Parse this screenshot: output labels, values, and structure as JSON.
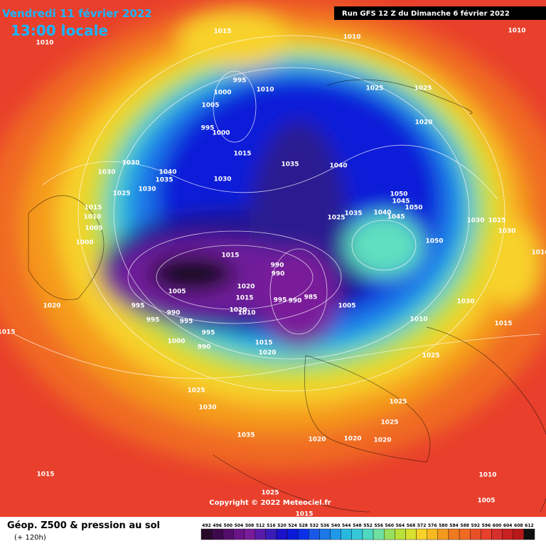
{
  "header": {
    "date": "Vendredi 11 février 2022",
    "time": "13:00 locale",
    "run": "Run GFS 12 Z du Dimanche 6 février 2022"
  },
  "map": {
    "copyright": "Copyright © 2022 Meteociel.fr",
    "isobar_labels": [
      1015,
      1010,
      1010,
      1010,
      995,
      1000,
      1010,
      1005,
      995,
      1000,
      1025,
      1025,
      1020,
      1015,
      1035,
      1040,
      1030,
      1040,
      1035,
      1030,
      1030,
      1025,
      1030,
      1015,
      1010,
      1005,
      1000,
      1050,
      1045,
      1050,
      1040,
      1045,
      1035,
      1025,
      1030,
      1025,
      1030,
      1050,
      1015,
      990,
      990,
      1010,
      1005,
      1020,
      995,
      990,
      995,
      995,
      1015,
      1020,
      1010,
      995,
      990,
      985,
      1005,
      1030,
      1020,
      1015,
      995,
      1000,
      990,
      1015,
      1020,
      1010,
      1015,
      1025,
      1025,
      1025,
      1030,
      1035,
      1020,
      1020,
      1020,
      1025,
      1015,
      1010,
      1025,
      1015,
      1005
    ]
  },
  "legend": {
    "title": "Géop. Z500 & pression au sol",
    "lead": "(+ 120h)",
    "scale": [
      492,
      496,
      500,
      504,
      508,
      512,
      516,
      520,
      524,
      528,
      532,
      536,
      540,
      544,
      548,
      552,
      556,
      560,
      564,
      568,
      572,
      576,
      580,
      584,
      588,
      592,
      596,
      600,
      604,
      608,
      612
    ]
  }
}
